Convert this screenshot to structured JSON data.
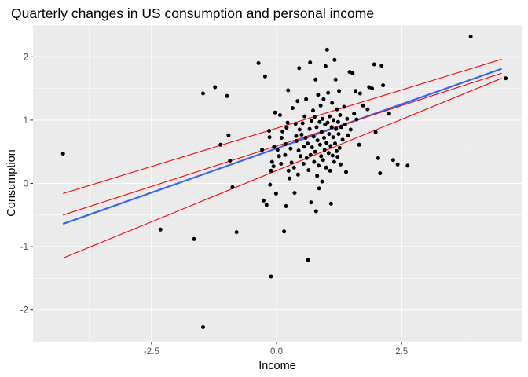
{
  "chart_data": {
    "type": "scatter",
    "title": "Quarterly changes in US consumption and personal income",
    "xlabel": "Income",
    "ylabel": "Consumption",
    "xlim": [
      -4.87,
      4.9
    ],
    "ylim": [
      -2.5,
      2.5
    ],
    "x_ticks": [
      -2.5,
      0,
      2.5
    ],
    "x_tick_labels": [
      "-2.5",
      "0.0",
      "2.5"
    ],
    "y_ticks": [
      -2,
      -1,
      0,
      1,
      2
    ],
    "y_tick_labels": [
      "-2",
      "-1",
      "0",
      "1",
      "2"
    ],
    "grid": true,
    "legend": "none",
    "colors": {
      "panel": "#ebebeb",
      "grid_major": "#ffffff",
      "points": "#000000",
      "fit_line": "#3366ff",
      "interval_lines": "#ff0000"
    },
    "points": [
      [
        -4.27,
        0.47
      ],
      [
        -2.32,
        -0.73
      ],
      [
        -1.65,
        -0.88
      ],
      [
        -1.47,
        1.42
      ],
      [
        -1.47,
        -2.27
      ],
      [
        -1.23,
        1.52
      ],
      [
        -1.12,
        0.61
      ],
      [
        -0.99,
        1.38
      ],
      [
        -0.96,
        0.76
      ],
      [
        -0.93,
        0.36
      ],
      [
        -0.88,
        -0.06
      ],
      [
        -0.8,
        -0.77
      ],
      [
        -0.36,
        1.9
      ],
      [
        -0.29,
        0.53
      ],
      [
        -0.26,
        -0.27
      ],
      [
        -0.23,
        1.69
      ],
      [
        -0.2,
        -0.34
      ],
      [
        -0.15,
        0.83
      ],
      [
        -0.14,
        0.73
      ],
      [
        -0.13,
        -0.02
      ],
      [
        -0.11,
        0.2
      ],
      [
        -0.09,
        0.34
      ],
      [
        -0.11,
        -1.47
      ],
      [
        -0.06,
        0.27
      ],
      [
        -0.05,
        0.58
      ],
      [
        -0.03,
        1.12
      ],
      [
        -0.01,
        -0.16
      ],
      [
        0.02,
        0.53
      ],
      [
        0.05,
        0.43
      ],
      [
        0.07,
        1.08
      ],
      [
        0.09,
        0.31
      ],
      [
        0.1,
        0.72
      ],
      [
        0.12,
        0.82
      ],
      [
        0.15,
        -0.76
      ],
      [
        0.17,
        0.45
      ],
      [
        0.18,
        0.62
      ],
      [
        0.19,
        -0.36
      ],
      [
        0.2,
        0.88
      ],
      [
        0.22,
        0.96
      ],
      [
        0.23,
        1.47
      ],
      [
        0.24,
        0.2
      ],
      [
        0.26,
        0.08
      ],
      [
        0.28,
        0.55
      ],
      [
        0.3,
        0.33
      ],
      [
        0.32,
        1.19
      ],
      [
        0.35,
        0.25
      ],
      [
        0.36,
        -0.15
      ],
      [
        0.38,
        0.94
      ],
      [
        0.39,
        0.75
      ],
      [
        0.4,
        0.67
      ],
      [
        0.42,
        1.3
      ],
      [
        0.43,
        0.14
      ],
      [
        0.44,
        0.52
      ],
      [
        0.45,
        1.82
      ],
      [
        0.46,
        0.85
      ],
      [
        0.48,
        0.43
      ],
      [
        0.5,
        0.77
      ],
      [
        0.52,
        0.95
      ],
      [
        0.54,
        0.31
      ],
      [
        0.55,
        0.58
      ],
      [
        0.56,
        1.06
      ],
      [
        0.58,
        0.72
      ],
      [
        0.59,
        1.33
      ],
      [
        0.6,
        0.4
      ],
      [
        0.62,
        0.63
      ],
      [
        0.63,
        -1.21
      ],
      [
        0.64,
        0.21
      ],
      [
        0.66,
        0.86
      ],
      [
        0.67,
        1.91
      ],
      [
        0.68,
        0.45
      ],
      [
        0.69,
        -0.3
      ],
      [
        0.7,
        0.99
      ],
      [
        0.71,
        0.57
      ],
      [
        0.73,
        1.15
      ],
      [
        0.74,
        0.74
      ],
      [
        0.75,
        0.34
      ],
      [
        0.76,
        1.05
      ],
      [
        0.77,
        0.5
      ],
      [
        0.78,
        1.64
      ],
      [
        0.79,
        -0.44
      ],
      [
        0.8,
        0.89
      ],
      [
        0.81,
        0.12
      ],
      [
        0.82,
        0.68
      ],
      [
        0.83,
        1.4
      ],
      [
        0.84,
        0.28
      ],
      [
        0.85,
        -0.08
      ],
      [
        0.86,
        0.97
      ],
      [
        0.87,
        0.61
      ],
      [
        0.88,
        1.23
      ],
      [
        0.89,
        0.43
      ],
      [
        0.9,
        0.81
      ],
      [
        0.91,
        0.03
      ],
      [
        0.92,
        1.02
      ],
      [
        0.93,
        0.37
      ],
      [
        0.94,
        1.33
      ],
      [
        0.95,
        0.72
      ],
      [
        0.96,
        0.53
      ],
      [
        0.97,
        0.93
      ],
      [
        0.98,
        1.85
      ],
      [
        0.99,
        0.25
      ],
      [
        1.0,
        0.64
      ],
      [
        1.01,
        2.11
      ],
      [
        1.02,
        0.96
      ],
      [
        1.03,
        1.43
      ],
      [
        1.04,
        0.48
      ],
      [
        1.05,
        0.78
      ],
      [
        1.06,
        1.06
      ],
      [
        1.07,
        0.2
      ],
      [
        1.08,
        0.59
      ],
      [
        1.09,
        -0.32
      ],
      [
        1.1,
        0.89
      ],
      [
        1.11,
        1.27
      ],
      [
        1.12,
        0.44
      ],
      [
        1.13,
        0.73
      ],
      [
        1.14,
        1.0
      ],
      [
        1.15,
        0.34
      ],
      [
        1.16,
        1.95
      ],
      [
        1.17,
        0.63
      ],
      [
        1.18,
        1.64
      ],
      [
        1.19,
        0.86
      ],
      [
        1.2,
        0.51
      ],
      [
        1.21,
        1.17
      ],
      [
        1.22,
        0.42
      ],
      [
        1.23,
        0.97
      ],
      [
        1.24,
        0.78
      ],
      [
        1.25,
        1.46
      ],
      [
        1.26,
        0.56
      ],
      [
        1.27,
        1.08
      ],
      [
        1.28,
        0.3
      ],
      [
        1.29,
        0.89
      ],
      [
        1.32,
        0.69
      ],
      [
        1.35,
        1.21
      ],
      [
        1.37,
        0.93
      ],
      [
        1.39,
        0.18
      ],
      [
        1.41,
        1.02
      ],
      [
        1.43,
        0.76
      ],
      [
        1.46,
        1.76
      ],
      [
        1.48,
        0.85
      ],
      [
        1.52,
        1.74
      ],
      [
        1.55,
        1.1
      ],
      [
        1.58,
        1.46
      ],
      [
        1.6,
        1.01
      ],
      [
        1.65,
        0.61
      ],
      [
        1.67,
        1.42
      ],
      [
        1.73,
        1.23
      ],
      [
        1.82,
        1.17
      ],
      [
        1.85,
        1.52
      ],
      [
        1.91,
        1.5
      ],
      [
        1.95,
        1.88
      ],
      [
        1.98,
        0.81
      ],
      [
        2.03,
        0.4
      ],
      [
        2.07,
        0.16
      ],
      [
        2.1,
        1.86
      ],
      [
        2.13,
        1.55
      ],
      [
        2.25,
        1.1
      ],
      [
        2.33,
        0.37
      ],
      [
        2.42,
        0.3
      ],
      [
        2.62,
        0.28
      ],
      [
        3.88,
        2.32
      ],
      [
        4.58,
        1.66
      ]
    ],
    "fit_line": {
      "x": [
        -4.27,
        4.5
      ],
      "y": [
        -0.64,
        1.81
      ]
    },
    "upper_line": {
      "x": [
        -4.27,
        4.5
      ],
      "y": [
        -0.16,
        1.96
      ]
    },
    "middle_line": {
      "x": [
        -4.27,
        4.5
      ],
      "y": [
        -0.5,
        1.74
      ]
    },
    "lower_line": {
      "x": [
        -4.27,
        4.5
      ],
      "y": [
        -1.18,
        1.66
      ]
    }
  }
}
